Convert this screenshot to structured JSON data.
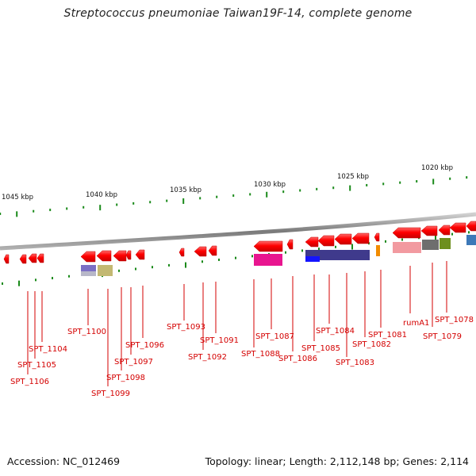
{
  "title": "Streptococcus pneumoniae Taiwan19F-14, complete genome",
  "footer": {
    "accession": "Accession: NC_012469",
    "summary": "Topology: linear; Length: 2,112,148 bp; Genes: 2,114"
  },
  "scale": {
    "labels": [
      "1045 kbp",
      "1040 kbp",
      "1035 kbp",
      "1030 kbp",
      "1025 kbp",
      "1020 kbp"
    ]
  },
  "colors": {
    "gene": "#ff0000",
    "tick": "#1a8a1a",
    "label": "#d40000",
    "backbone": "#8a8a8a"
  },
  "genes": [
    "SPT_1106",
    "SPT_1105",
    "SPT_1104",
    "SPT_1100",
    "SPT_1099",
    "SPT_1098",
    "SPT_1097",
    "SPT_1096",
    "SPT_1093",
    "SPT_1092",
    "SPT_1091",
    "SPT_1088",
    "SPT_1087",
    "SPT_1086",
    "SPT_1085",
    "SPT_1084",
    "SPT_1083",
    "SPT_1082",
    "SPT_1081",
    "rumA1",
    "SPT_1079",
    "SPT_1078"
  ]
}
